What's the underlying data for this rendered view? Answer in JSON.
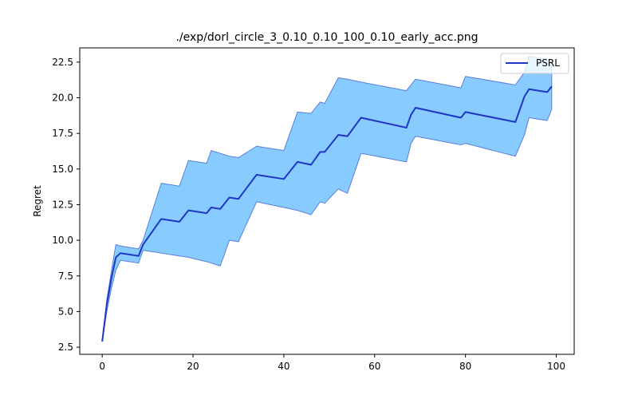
{
  "chart_data": {
    "type": "line",
    "title": "./exp/dorl_circle_3_0.10_0.10_100_0.10_early_acc.png",
    "xlabel": "",
    "ylabel": "Regret",
    "xlim": [
      -4.95,
      103.95
    ],
    "ylim": [
      2.0,
      23.5
    ],
    "xticks": [
      0,
      20,
      40,
      60,
      80,
      100
    ],
    "yticks": [
      2.5,
      5.0,
      7.5,
      10.0,
      12.5,
      15.0,
      17.5,
      20.0,
      22.5
    ],
    "legend_position": "top-right",
    "colors": {
      "line": "#1f35c4",
      "band_fill": "#87cbff",
      "band_edge": "#5b7ede"
    },
    "series": [
      {
        "name": "PSRL",
        "x": [
          0,
          1,
          2,
          3,
          4,
          8,
          9,
          13,
          17,
          19,
          23,
          24,
          26,
          28,
          30,
          34,
          40,
          43,
          46,
          48,
          49,
          52,
          54,
          57,
          67,
          68,
          69,
          79,
          80,
          91,
          93,
          94,
          98,
          99
        ],
        "y": [
          2.9,
          5.5,
          7.3,
          8.8,
          9.1,
          8.9,
          9.7,
          11.5,
          11.3,
          12.1,
          11.9,
          12.3,
          12.2,
          13.0,
          12.9,
          14.6,
          14.3,
          15.5,
          15.3,
          16.2,
          16.2,
          17.4,
          17.3,
          18.6,
          17.9,
          18.8,
          19.3,
          18.6,
          19.0,
          18.3,
          20.1,
          20.6,
          20.4,
          20.8
        ],
        "upper": [
          2.9,
          5.8,
          7.8,
          9.7,
          9.6,
          9.4,
          10.0,
          14.0,
          13.8,
          15.6,
          15.4,
          16.3,
          16.1,
          15.9,
          15.8,
          16.6,
          16.3,
          19.0,
          18.9,
          19.7,
          19.6,
          21.4,
          21.3,
          21.1,
          20.5,
          20.9,
          21.3,
          20.7,
          21.5,
          20.9,
          21.8,
          22.9,
          22.7,
          22.6
        ],
        "lower": [
          2.9,
          5.0,
          6.6,
          7.9,
          8.6,
          8.4,
          9.3,
          9.1,
          8.9,
          8.8,
          8.5,
          8.4,
          8.2,
          10.0,
          9.9,
          12.7,
          12.3,
          12.1,
          11.8,
          12.7,
          12.6,
          13.6,
          13.3,
          16.1,
          15.5,
          16.8,
          17.3,
          16.7,
          16.8,
          15.9,
          17.4,
          18.6,
          18.4,
          19.2
        ]
      }
    ]
  }
}
